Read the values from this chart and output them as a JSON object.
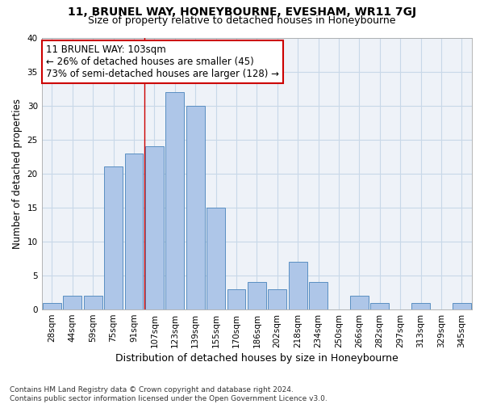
{
  "title": "11, BRUNEL WAY, HONEYBOURNE, EVESHAM, WR11 7GJ",
  "subtitle": "Size of property relative to detached houses in Honeybourne",
  "xlabel": "Distribution of detached houses by size in Honeybourne",
  "ylabel": "Number of detached properties",
  "categories": [
    "28sqm",
    "44sqm",
    "59sqm",
    "75sqm",
    "91sqm",
    "107sqm",
    "123sqm",
    "139sqm",
    "155sqm",
    "170sqm",
    "186sqm",
    "202sqm",
    "218sqm",
    "234sqm",
    "250sqm",
    "266sqm",
    "282sqm",
    "297sqm",
    "313sqm",
    "329sqm",
    "345sqm"
  ],
  "values": [
    1,
    2,
    2,
    21,
    23,
    24,
    32,
    30,
    15,
    3,
    4,
    3,
    7,
    4,
    0,
    2,
    1,
    0,
    1,
    0,
    1
  ],
  "bar_color": "#aec6e8",
  "bar_edge_color": "#5a8fc2",
  "grid_color": "#c8d8e8",
  "background_color": "#eef2f8",
  "vline_color": "#cc0000",
  "vline_x_index": 4.5,
  "annotation_line1": "11 BRUNEL WAY: 103sqm",
  "annotation_line2": "← 26% of detached houses are smaller (45)",
  "annotation_line3": "73% of semi-detached houses are larger (128) →",
  "annotation_box_color": "#ffffff",
  "annotation_box_edge": "#cc0000",
  "ylim": [
    0,
    40
  ],
  "yticks": [
    0,
    5,
    10,
    15,
    20,
    25,
    30,
    35,
    40
  ],
  "footer": "Contains HM Land Registry data © Crown copyright and database right 2024.\nContains public sector information licensed under the Open Government Licence v3.0.",
  "title_fontsize": 10,
  "subtitle_fontsize": 9,
  "tick_fontsize": 7.5,
  "ylabel_fontsize": 8.5,
  "xlabel_fontsize": 9,
  "annotation_fontsize": 8.5,
  "footer_fontsize": 6.5
}
